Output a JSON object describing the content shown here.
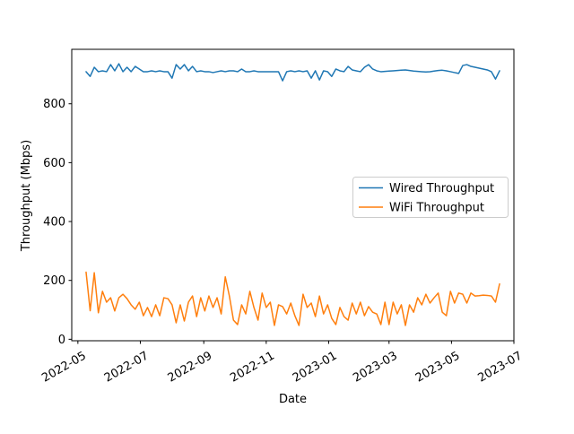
{
  "figure": {
    "background": "#ffffff"
  },
  "chart_data": {
    "type": "line",
    "title": "",
    "xlabel": "Date",
    "ylabel": "Throughput (Mbps)",
    "grid": false,
    "legend_position": "center right",
    "xlim": [
      "2022-04-25",
      "2023-07-01"
    ],
    "ylim": [
      -5,
      985
    ],
    "yticks": [
      {
        "value": 0,
        "label": "0"
      },
      {
        "value": 200,
        "label": "200"
      },
      {
        "value": 400,
        "label": "400"
      },
      {
        "value": 600,
        "label": "600"
      },
      {
        "value": 800,
        "label": "800"
      }
    ],
    "xticks": [
      {
        "date": "2022-05-01",
        "label": "2022-05"
      },
      {
        "date": "2022-07-01",
        "label": "2022-07"
      },
      {
        "date": "2022-09-01",
        "label": "2022-09"
      },
      {
        "date": "2022-11-01",
        "label": "2022-11"
      },
      {
        "date": "2023-01-01",
        "label": "2023-01"
      },
      {
        "date": "2023-03-01",
        "label": "2023-03"
      },
      {
        "date": "2023-05-01",
        "label": "2023-05"
      },
      {
        "date": "2023-07-01",
        "label": "2023-07"
      }
    ],
    "x": [
      "2022-05-09",
      "2022-05-13",
      "2022-05-17",
      "2022-05-21",
      "2022-05-25",
      "2022-05-29",
      "2022-06-02",
      "2022-06-06",
      "2022-06-10",
      "2022-06-14",
      "2022-06-18",
      "2022-06-22",
      "2022-06-26",
      "2022-06-30",
      "2022-07-04",
      "2022-07-08",
      "2022-07-12",
      "2022-07-16",
      "2022-07-20",
      "2022-07-24",
      "2022-07-28",
      "2022-08-01",
      "2022-08-05",
      "2022-08-09",
      "2022-08-13",
      "2022-08-17",
      "2022-08-21",
      "2022-08-25",
      "2022-08-29",
      "2022-09-02",
      "2022-09-06",
      "2022-09-10",
      "2022-09-14",
      "2022-09-18",
      "2022-09-22",
      "2022-09-26",
      "2022-09-30",
      "2022-10-04",
      "2022-10-08",
      "2022-10-12",
      "2022-10-16",
      "2022-10-20",
      "2022-10-24",
      "2022-10-28",
      "2022-11-01",
      "2022-11-05",
      "2022-11-09",
      "2022-11-13",
      "2022-11-17",
      "2022-11-21",
      "2022-11-25",
      "2022-11-29",
      "2022-12-03",
      "2022-12-07",
      "2022-12-11",
      "2022-12-15",
      "2022-12-19",
      "2022-12-23",
      "2022-12-27",
      "2022-12-31",
      "2023-01-04",
      "2023-01-08",
      "2023-01-12",
      "2023-01-16",
      "2023-01-20",
      "2023-01-24",
      "2023-01-28",
      "2023-02-01",
      "2023-02-05",
      "2023-02-09",
      "2023-02-13",
      "2023-02-17",
      "2023-02-21",
      "2023-02-25",
      "2023-03-01",
      "2023-03-05",
      "2023-03-09",
      "2023-03-13",
      "2023-03-17",
      "2023-03-21",
      "2023-03-25",
      "2023-03-29",
      "2023-04-02",
      "2023-04-06",
      "2023-04-10",
      "2023-04-14",
      "2023-04-18",
      "2023-04-22",
      "2023-04-26",
      "2023-04-30",
      "2023-05-04",
      "2023-05-08",
      "2023-05-12",
      "2023-05-16",
      "2023-05-20",
      "2023-05-24",
      "2023-05-28",
      "2023-06-01",
      "2023-06-05",
      "2023-06-09",
      "2023-06-13",
      "2023-06-17"
    ],
    "series": [
      {
        "name": "Wired Throughput",
        "color": "#1f77b4",
        "values": [
          909,
          893,
          924,
          909,
          912,
          909,
          933,
          912,
          936,
          909,
          924,
          909,
          927,
          918,
          909,
          909,
          912,
          909,
          912,
          909,
          909,
          887,
          933,
          918,
          933,
          912,
          927,
          909,
          912,
          909,
          909,
          906,
          909,
          912,
          909,
          912,
          912,
          909,
          918,
          909,
          909,
          912,
          909,
          909,
          909,
          909,
          909,
          909,
          878,
          909,
          912,
          909,
          912,
          909,
          912,
          887,
          912,
          881,
          912,
          909,
          893,
          918,
          912,
          909,
          927,
          915,
          912,
          909,
          924,
          933,
          918,
          912,
          909,
          910,
          911,
          912,
          913,
          914,
          915,
          913,
          911,
          910,
          909,
          908,
          909,
          911,
          913,
          914,
          912,
          909,
          906,
          903,
          930,
          933,
          927,
          924,
          921,
          918,
          915,
          909,
          884,
          912
        ]
      },
      {
        "name": "WiFi Throughput",
        "color": "#ff7f0e",
        "values": [
          228,
          97,
          226,
          90,
          163,
          126,
          141,
          96,
          141,
          153,
          138,
          117,
          102,
          126,
          80,
          108,
          77,
          117,
          80,
          141,
          138,
          117,
          56,
          117,
          62,
          126,
          147,
          77,
          141,
          96,
          147,
          108,
          141,
          86,
          212,
          147,
          65,
          50,
          117,
          86,
          163,
          108,
          65,
          157,
          108,
          126,
          47,
          117,
          111,
          86,
          123,
          80,
          47,
          153,
          108,
          123,
          77,
          147,
          86,
          117,
          71,
          50,
          108,
          77,
          65,
          123,
          86,
          126,
          80,
          111,
          92,
          86,
          50,
          126,
          50,
          126,
          86,
          117,
          47,
          117,
          92,
          141,
          117,
          153,
          123,
          141,
          157,
          92,
          80,
          163,
          123,
          157,
          153,
          123,
          157,
          147,
          148,
          150,
          149,
          147,
          126,
          188
        ]
      }
    ]
  }
}
